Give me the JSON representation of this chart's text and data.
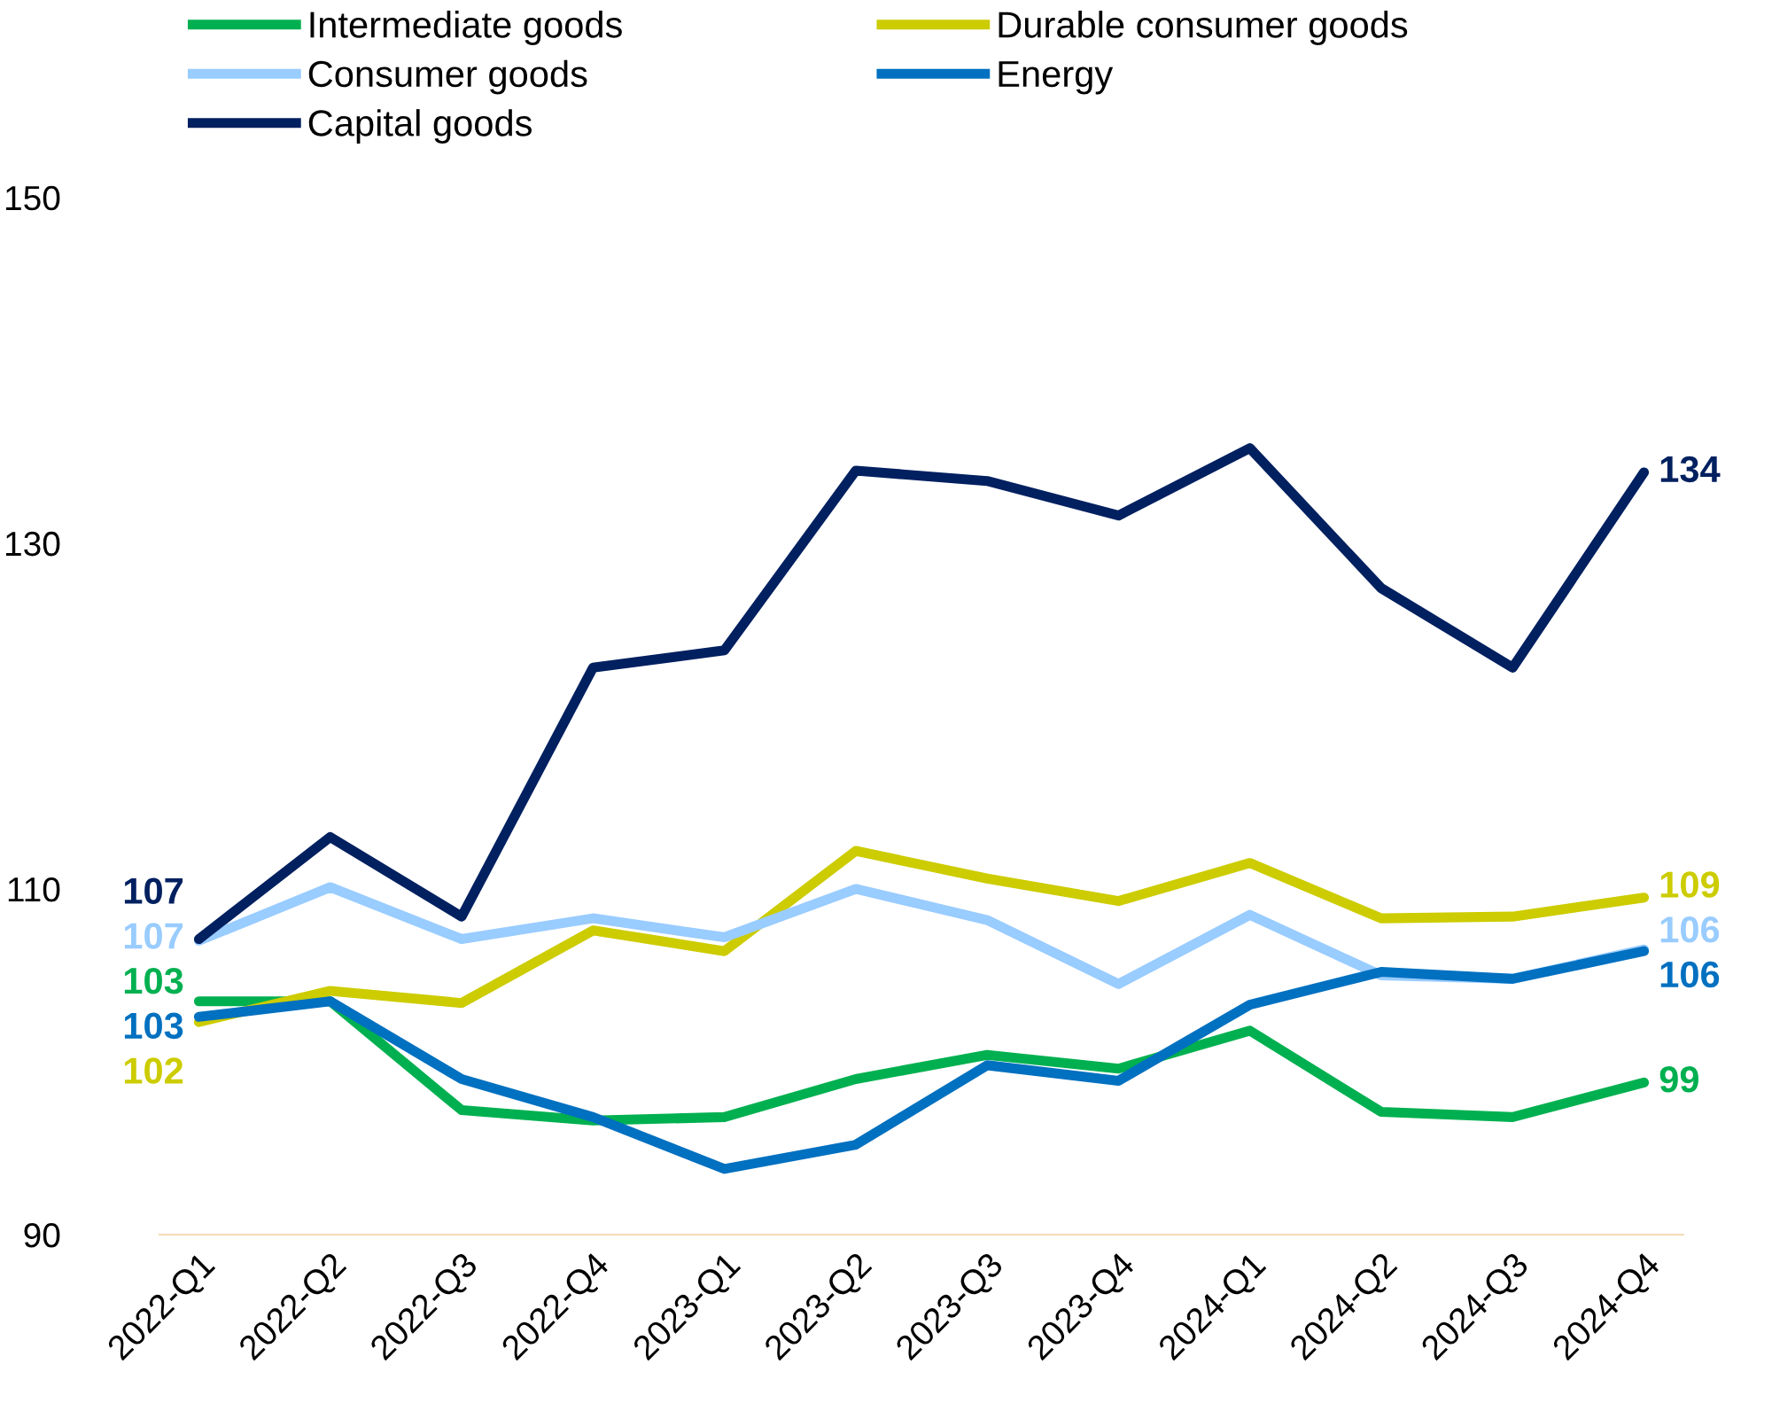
{
  "chart_data": {
    "type": "line",
    "categories": [
      "2022-Q1",
      "2022-Q2",
      "2022-Q3",
      "2022-Q4",
      "2023-Q1",
      "2023-Q2",
      "2023-Q3",
      "2023-Q4",
      "2024-Q1",
      "2024-Q2",
      "2024-Q3",
      "2024-Q4"
    ],
    "ylim": [
      90,
      150
    ],
    "yticks": [
      90,
      110,
      130,
      150
    ],
    "grid": false,
    "legend": "top",
    "marker": "none",
    "line_style": "solid",
    "series": [
      {
        "name": "Intermediate goods",
        "color": "#00b050",
        "values": [
          103.5,
          103.5,
          97.2,
          96.6,
          96.8,
          99.0,
          100.4,
          99.6,
          101.8,
          97.1,
          96.8,
          98.8
        ],
        "value_labels": [
          "103",
          null,
          null,
          null,
          null,
          null,
          null,
          null,
          null,
          null,
          null,
          "99"
        ]
      },
      {
        "name": "Durable consumer goods",
        "color": "#cccc00",
        "values": [
          102.3,
          104.1,
          103.4,
          107.6,
          106.4,
          112.2,
          110.6,
          109.3,
          111.5,
          108.3,
          108.4,
          109.5
        ],
        "value_labels": [
          "102",
          null,
          null,
          null,
          null,
          null,
          null,
          null,
          null,
          null,
          null,
          "109"
        ]
      },
      {
        "name": "Consumer goods",
        "color": "#99ccff",
        "values": [
          107.0,
          110.1,
          107.1,
          108.3,
          107.2,
          110.0,
          108.2,
          104.5,
          108.5,
          105.0,
          104.8,
          106.5
        ],
        "value_labels": [
          "107",
          null,
          null,
          null,
          null,
          null,
          null,
          null,
          null,
          null,
          null,
          "106"
        ]
      },
      {
        "name": "Energy",
        "color": "#0070c0",
        "values": [
          102.6,
          103.5,
          99.0,
          96.8,
          93.8,
          95.2,
          99.8,
          98.9,
          103.3,
          105.2,
          104.8,
          106.4
        ],
        "value_labels": [
          "103",
          null,
          null,
          null,
          null,
          null,
          null,
          null,
          null,
          null,
          null,
          "106"
        ]
      },
      {
        "name": "Capital goods",
        "color": "#002060",
        "values": [
          107.1,
          113.0,
          108.4,
          122.8,
          123.8,
          134.2,
          133.6,
          131.6,
          135.5,
          127.4,
          122.8,
          134.1
        ],
        "value_labels": [
          "107",
          null,
          null,
          null,
          null,
          null,
          null,
          null,
          null,
          null,
          null,
          "134"
        ]
      }
    ]
  }
}
